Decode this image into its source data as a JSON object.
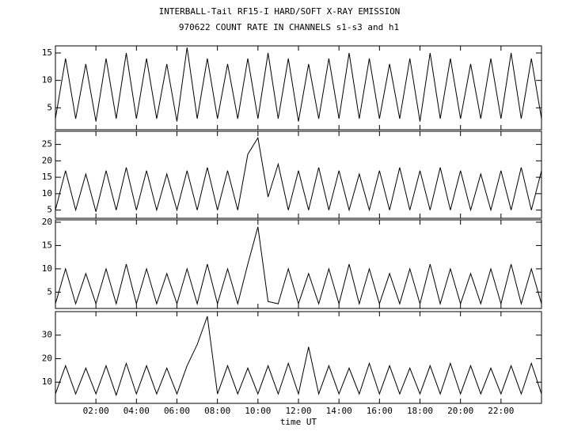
{
  "chart_data": {
    "type": "line",
    "title": "INTERBALL-Tail RF15-I HARD/SOFT X-RAY EMISSION",
    "subtitle": "970622  COUNT RATE IN CHANNELS s1-s3 and h1",
    "xlabel": "time UT",
    "color": "#000000",
    "xlim": [
      0,
      24
    ],
    "xticks": [
      {
        "value": 2,
        "label": "02:00"
      },
      {
        "value": 4,
        "label": "04:00"
      },
      {
        "value": 6,
        "label": "06:00"
      },
      {
        "value": 8,
        "label": "08:00"
      },
      {
        "value": 10,
        "label": "10:00"
      },
      {
        "value": 12,
        "label": "12:00"
      },
      {
        "value": 14,
        "label": "14:00"
      },
      {
        "value": 16,
        "label": "16:00"
      },
      {
        "value": 18,
        "label": "18:00"
      },
      {
        "value": 20,
        "label": "20:00"
      },
      {
        "value": 22,
        "label": "22:00"
      }
    ],
    "x": [
      0,
      0.5,
      1,
      1.5,
      2,
      2.5,
      3,
      3.5,
      4,
      4.5,
      5,
      5.5,
      6,
      6.5,
      7,
      7.5,
      8,
      8.5,
      9,
      9.5,
      10,
      10.5,
      11,
      11.5,
      12,
      12.5,
      13,
      13.5,
      14,
      14.5,
      15,
      15.5,
      16,
      16.5,
      17,
      17.5,
      18,
      18.5,
      19,
      19.5,
      20,
      20.5,
      21,
      21.5,
      22,
      22.5,
      23,
      23.5,
      24
    ],
    "panels": [
      {
        "ylim": [
          1,
          16.3
        ],
        "yticks": [
          5,
          10,
          15
        ],
        "values": [
          3,
          14,
          3,
          13,
          2.5,
          14,
          3,
          15,
          3,
          14,
          3,
          13,
          2.5,
          16,
          3,
          14,
          3,
          13,
          3,
          14,
          3,
          15,
          3,
          14,
          2.5,
          13,
          3,
          14,
          3,
          15,
          3,
          14,
          3,
          13,
          3,
          14,
          2.5,
          15,
          3,
          14,
          3,
          13,
          3,
          14,
          3,
          15,
          3,
          14,
          3
        ]
      },
      {
        "ylim": [
          2.5,
          29
        ],
        "yticks": [
          5,
          10,
          15,
          20,
          25
        ],
        "values": [
          5,
          17,
          5,
          16,
          4.5,
          17,
          5,
          18,
          5,
          17,
          5,
          16,
          5,
          17,
          5,
          18,
          5,
          17,
          5,
          22,
          27,
          9,
          19,
          5,
          17,
          5,
          18,
          5,
          17,
          5,
          16,
          5,
          17,
          5,
          18,
          5,
          17,
          5,
          18,
          5,
          17,
          5,
          16,
          5,
          17,
          5,
          18,
          5,
          17
        ]
      },
      {
        "ylim": [
          1.5,
          20.5
        ],
        "yticks": [
          5,
          10,
          15,
          20
        ],
        "values": [
          2.5,
          10,
          2.5,
          9,
          2.5,
          10,
          2.5,
          11,
          2.5,
          10,
          2.5,
          9,
          2.5,
          10,
          2.5,
          11,
          2.5,
          10,
          2.5,
          11,
          19,
          3,
          2.5,
          10,
          2.5,
          9,
          2.5,
          10,
          2.5,
          11,
          2.5,
          10,
          2.5,
          9,
          2.5,
          10,
          2.5,
          11,
          2.5,
          10,
          2.5,
          9,
          2.5,
          10,
          2.5,
          11,
          2.5,
          10,
          2.5
        ]
      },
      {
        "ylim": [
          1,
          40
        ],
        "yticks": [
          10,
          20,
          30
        ],
        "values": [
          5,
          17,
          5,
          16,
          5,
          17,
          4.5,
          18,
          5,
          17,
          5,
          16,
          5,
          17,
          26,
          38,
          5,
          17,
          5,
          16,
          5,
          17,
          5,
          18,
          5,
          25,
          5,
          17,
          5,
          16,
          5,
          18,
          5,
          17,
          5,
          16,
          5,
          17,
          5,
          18,
          5,
          17,
          5,
          16,
          5,
          17,
          5,
          18,
          5
        ]
      }
    ]
  }
}
